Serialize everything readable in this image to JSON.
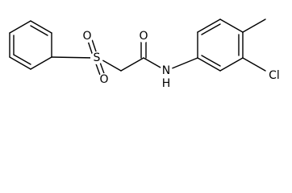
{
  "atoms": [
    {
      "label": "O"
    },
    {
      "label": "S"
    },
    {
      "label": "O"
    },
    {
      "label": "O"
    },
    {
      "label": "N"
    },
    {
      "label": "H"
    },
    {
      "label": "Cl"
    }
  ]
}
